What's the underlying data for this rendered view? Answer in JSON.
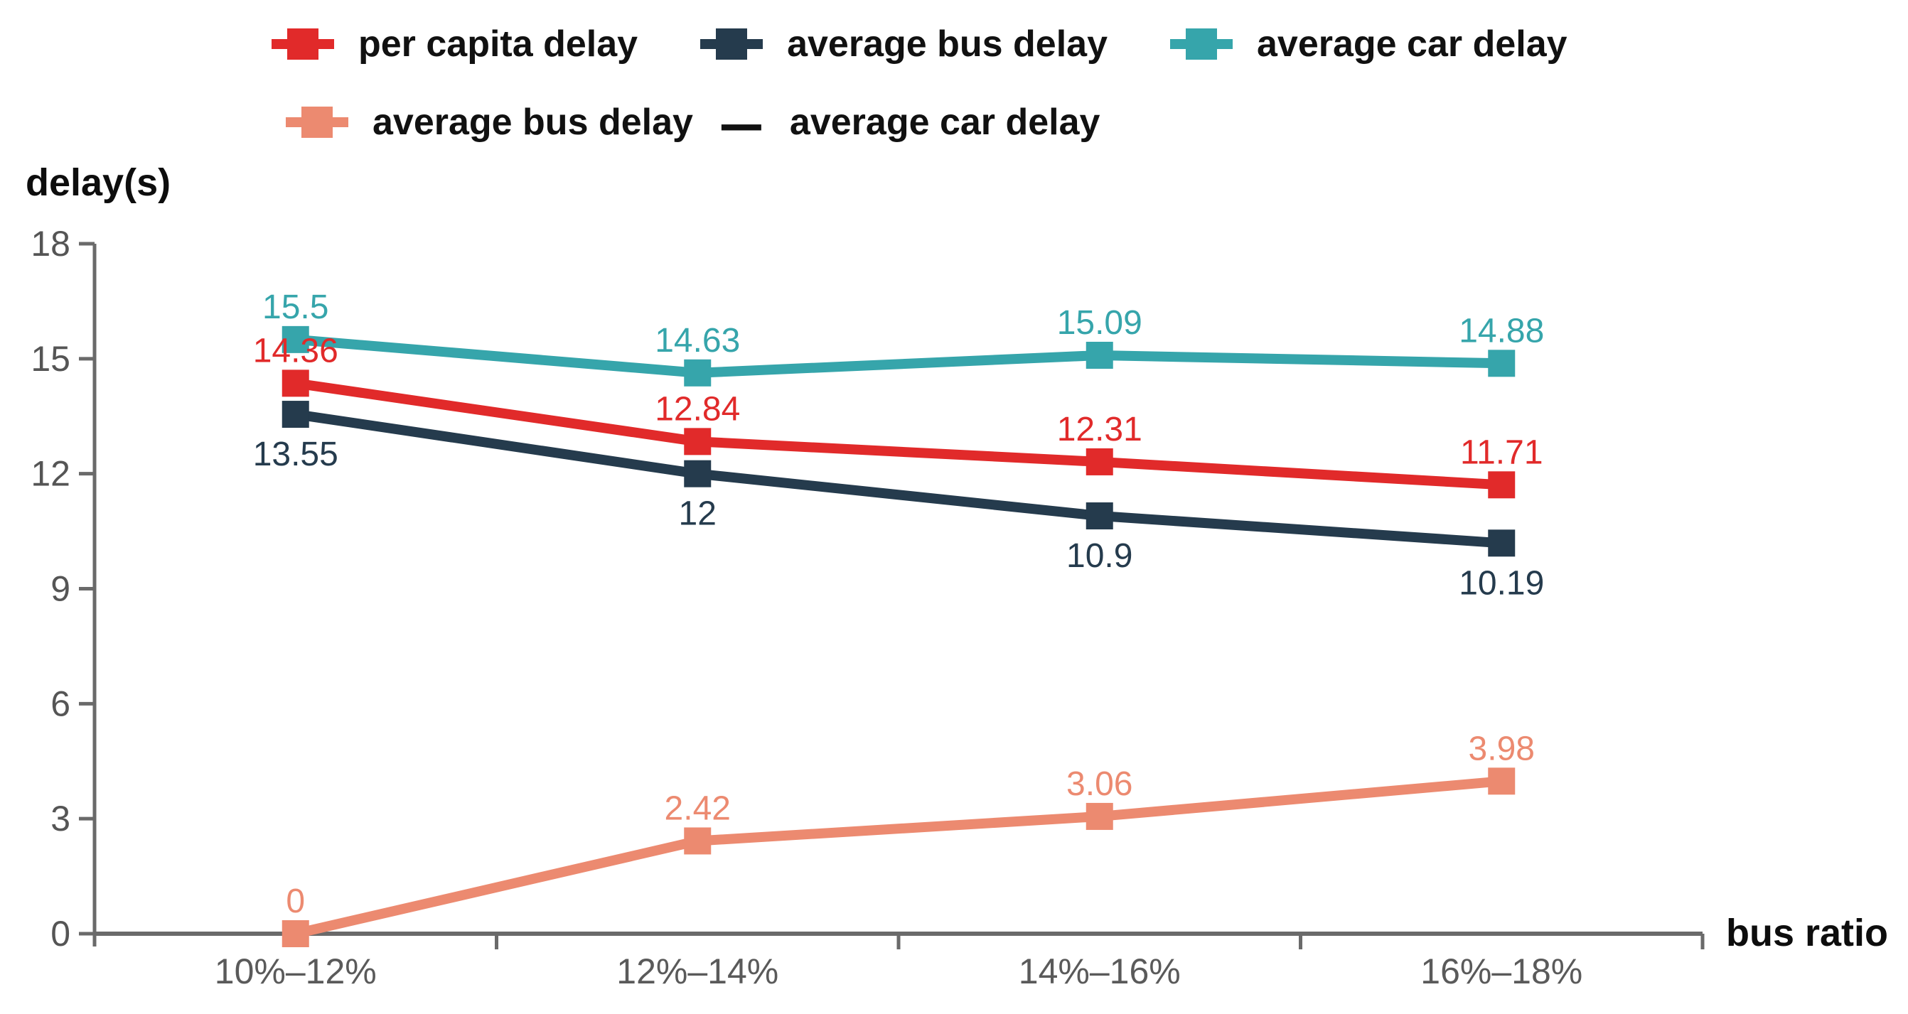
{
  "chart_data": {
    "type": "line",
    "title": "",
    "xlabel": "bus ratio",
    "ylabel": "delay(s)",
    "categories": [
      "10%–12%",
      "12%–14%",
      "14%–16%",
      "16%–18%"
    ],
    "y_ticks": [
      0,
      3,
      6,
      9,
      12,
      15,
      18
    ],
    "ylim": [
      0,
      18
    ],
    "grid": false,
    "legend_position": "top",
    "series": [
      {
        "name": "per capita delay",
        "color": "#e12a2a",
        "values": [
          14.36,
          12.84,
          12.31,
          11.71
        ],
        "data_labels": [
          "14.36",
          "12.84",
          "12.31",
          "11.71"
        ],
        "data_label_position": "above"
      },
      {
        "name": "average bus delay",
        "color": "#253b4d",
        "values": [
          13.55,
          12,
          10.9,
          10.19
        ],
        "data_labels": [
          "13.55",
          "12",
          "10.9",
          "10.19"
        ],
        "data_label_position": "below"
      },
      {
        "name": "average car delay",
        "color": "#36a5ab",
        "values": [
          15.5,
          14.63,
          15.09,
          14.88
        ],
        "data_labels": [
          "15.5",
          "14.63",
          "15.09",
          "14.88"
        ],
        "data_label_position": "above"
      },
      {
        "name": "average bus delay — average car delay",
        "color": "#ec8a70",
        "values": [
          0,
          2.42,
          3.06,
          3.98
        ],
        "data_labels": [
          "0",
          "2.42",
          "3.06",
          "3.98"
        ],
        "data_label_position": "above"
      }
    ],
    "legend": {
      "row1_series": [
        0,
        1,
        2
      ],
      "row2": {
        "marker_series": 3,
        "label_before_dash": "average bus delay",
        "dash": "—",
        "label_after_dash": "average car delay"
      }
    }
  }
}
